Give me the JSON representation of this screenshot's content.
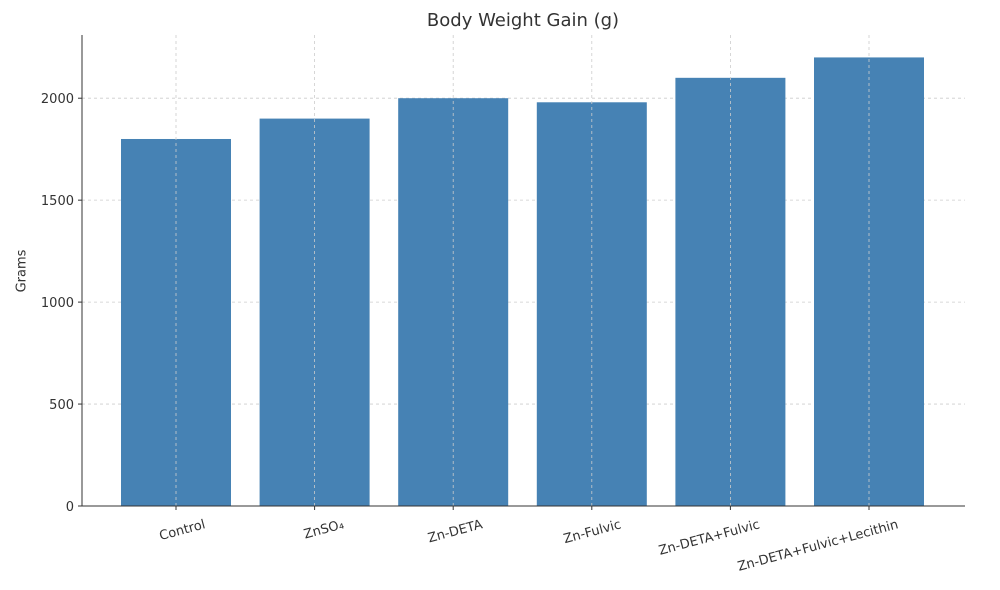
{
  "chart_data": {
    "type": "bar",
    "title": "Body Weight Gain (g)",
    "y_label": "Grams",
    "categories": [
      "Control",
      "ZnSO₄",
      "Zn-DETA",
      "Zn-Fulvic",
      "Zn-DETA+Fulvic",
      "Zn-DETA+Fulvic+Lecithin"
    ],
    "values": [
      1800,
      1900,
      2000,
      1980,
      2100,
      2200
    ],
    "color": "#4682b4",
    "ylim": [
      0,
      2310
    ],
    "yticks": [
      0,
      500,
      1000,
      1500,
      2000
    ],
    "grid": true
  }
}
